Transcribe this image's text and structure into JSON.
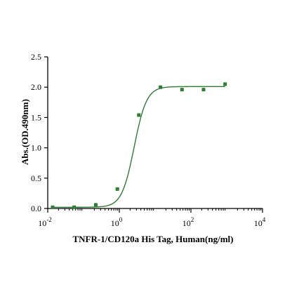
{
  "chart_data": {
    "type": "scatter",
    "title": "",
    "xlabel": "TNFR-1/CD120a His Tag, Human(ng/ml)",
    "ylabel": "Abs.(OD.490nm)",
    "x_scale": "log10",
    "xlim": [
      0.01,
      10000
    ],
    "ylim": [
      0,
      2.5
    ],
    "x_ticks": [
      {
        "value": 0.01,
        "base": "10",
        "exp": "-2"
      },
      {
        "value": 1,
        "base": "10",
        "exp": "0"
      },
      {
        "value": 100,
        "base": "10",
        "exp": "2"
      },
      {
        "value": 10000,
        "base": "10",
        "exp": "4"
      }
    ],
    "y_ticks": [
      "0.0",
      "0.5",
      "1.0",
      "1.5",
      "2.0",
      "2.5"
    ],
    "grid": false,
    "legend": "none",
    "colors": {
      "series": "#2e7d32",
      "axes": "#000000"
    },
    "series": [
      {
        "points": [
          {
            "x": 0.0137,
            "y": 0.02
          },
          {
            "x": 0.0549,
            "y": 0.02
          },
          {
            "x": 0.22,
            "y": 0.06
          },
          {
            "x": 0.88,
            "y": 0.32
          },
          {
            "x": 3.5,
            "y": 1.54
          },
          {
            "x": 14.1,
            "y": 2.0
          },
          {
            "x": 56.3,
            "y": 1.96
          },
          {
            "x": 225,
            "y": 1.96
          },
          {
            "x": 900,
            "y": 2.05
          }
        ],
        "fit": {
          "model": "4PL",
          "bottom": 0.02,
          "top": 2.01,
          "ec50": 2.6,
          "hill": 2.5
        }
      }
    ]
  }
}
